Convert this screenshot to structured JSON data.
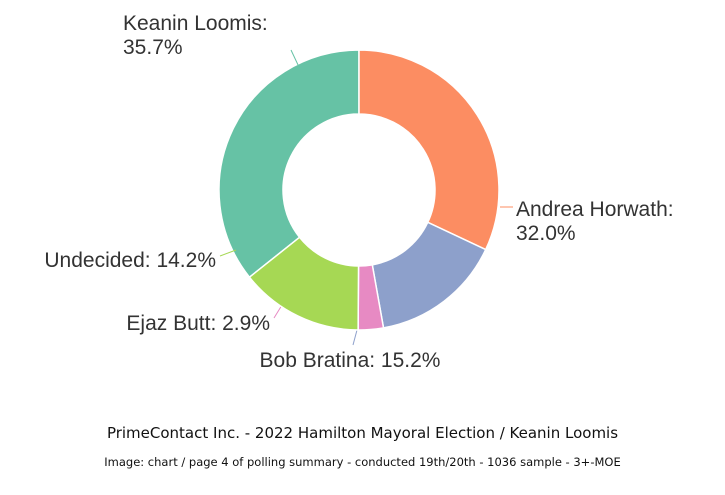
{
  "chart_data": {
    "type": "pie",
    "style": "donut",
    "slices": [
      {
        "label": "Keanin Loomis",
        "value": 35.7,
        "value_text": "35.7%",
        "color": "#66c2a5"
      },
      {
        "label": "Andrea Horwath",
        "value": 32.0,
        "value_text": "32.0%",
        "color": "#fc8d62"
      },
      {
        "label": "Bob Bratina",
        "value": 15.2,
        "value_text": "15.2%",
        "color": "#8da0cb"
      },
      {
        "label": "Ejaz Butt",
        "value": 2.9,
        "value_text": "2.9%",
        "color": "#e78ac3"
      },
      {
        "label": "Undecided",
        "value": 14.2,
        "value_text": "14.2%",
        "color": "#a6d854"
      }
    ]
  },
  "caption": {
    "title": "PrimeContact Inc. - 2022 Hamilton Mayoral Election / Keanin Loomis",
    "subtitle": "Image: chart / page 4 of polling summary - conducted 19th/20th - 1036 sample - 3+-MOE"
  }
}
